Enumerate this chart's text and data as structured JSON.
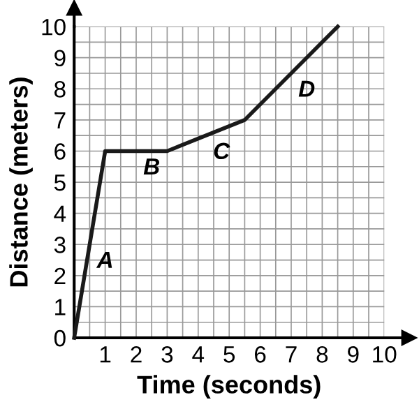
{
  "chart_data": {
    "type": "line",
    "xlabel": "Time (seconds)",
    "ylabel": "Distance (meters)",
    "x": [
      0,
      1,
      3,
      5.5,
      8.5
    ],
    "series": [
      {
        "color": "#1a1a1a",
        "values": [
          0,
          6,
          6,
          7,
          10
        ]
      }
    ],
    "xlim": [
      0,
      10
    ],
    "ylim": [
      0,
      10
    ],
    "xticks": [
      1,
      2,
      3,
      4,
      5,
      6,
      7,
      8,
      9,
      10
    ],
    "yticks": [
      0,
      1,
      2,
      3,
      4,
      5,
      6,
      7,
      8,
      9,
      10
    ],
    "grid": true,
    "marker": "none",
    "line_style": "solid",
    "annotations": [
      "A",
      "B",
      "C",
      "D"
    ]
  }
}
